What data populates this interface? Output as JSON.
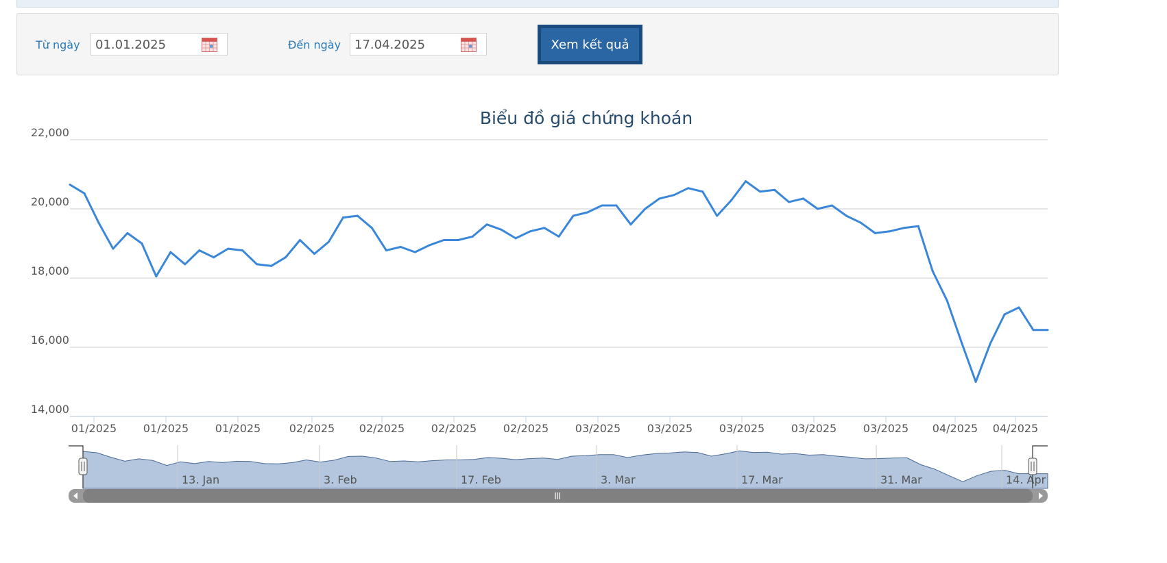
{
  "filter": {
    "from_label": "Từ ngày",
    "from_value": "01.01.2025",
    "to_label": "Đến ngày",
    "to_value": "17.04.2025",
    "submit_label": "Xem kết quả"
  },
  "colors": {
    "line": "#3a87d9",
    "navigator_fill": "#b3c6dd",
    "navigator_line": "#4a6a96",
    "button": "#2a66a3",
    "label": "#2a7ab9",
    "title": "#274b6d"
  },
  "icons": [
    "calendar-icon",
    "calendar-icon",
    "arrow-left-icon",
    "arrow-right-icon",
    "scroll-grip-icon",
    "handle-grip-icon"
  ],
  "chart_data": {
    "type": "line",
    "title": "Biểu đồ giá chứng khoán",
    "xlabel": "",
    "ylabel": "",
    "ylim": [
      14000,
      22000
    ],
    "yticks": [
      "22,000",
      "20,000",
      "18,000",
      "16,000",
      "14,000"
    ],
    "grid": true,
    "x_ticks": [
      "01/2025",
      "01/2025",
      "01/2025",
      "02/2025",
      "02/2025",
      "02/2025",
      "02/2025",
      "03/2025",
      "03/2025",
      "03/2025",
      "03/2025",
      "03/2025",
      "04/2025",
      "04/2025"
    ],
    "navigator_labels": [
      "13. Jan",
      "3. Feb",
      "17. Feb",
      "3. Mar",
      "17. Mar",
      "31. Mar",
      "14. Apr"
    ],
    "series": [
      {
        "values": [
          20700,
          20450,
          19600,
          18850,
          19300,
          19000,
          18050,
          18750,
          18400,
          18800,
          18600,
          18850,
          18800,
          18400,
          18350,
          18600,
          19100,
          18700,
          19050,
          19750,
          19800,
          19450,
          18800,
          18900,
          18750,
          18950,
          19100,
          19100,
          19200,
          19550,
          19400,
          19150,
          19350,
          19450,
          19200,
          19800,
          19900,
          20100,
          20100,
          19550,
          20000,
          20300,
          20400,
          20600,
          20500,
          19800,
          20250,
          20800,
          20500,
          20550,
          20200,
          20300,
          20000,
          20100,
          19800,
          19600,
          19300,
          19350,
          19450,
          19500,
          18200,
          17350,
          16150,
          15000,
          16100,
          16950,
          17150,
          16500,
          16500
        ]
      }
    ]
  }
}
